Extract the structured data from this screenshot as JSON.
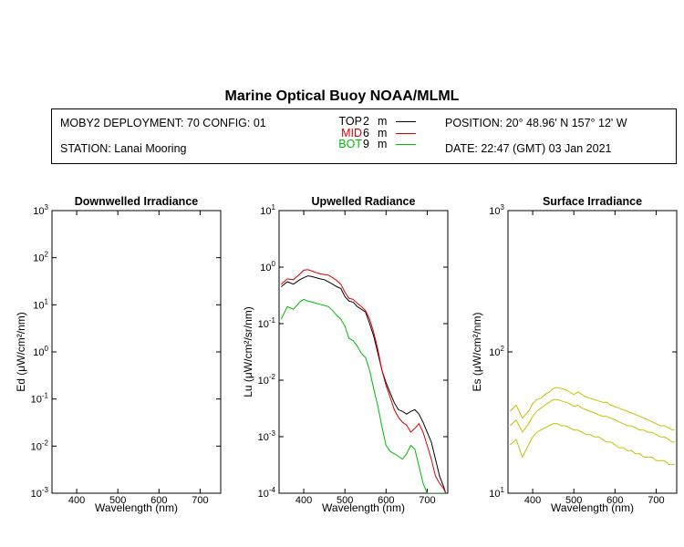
{
  "title": "Marine Optical Buoy NOAA/MLML",
  "info": {
    "deployment": "MOBY2 DEPLOYMENT: 70 CONFIG: 01",
    "station": "STATION: Lanai Mooring",
    "position": "POSITION: 20° 48.96' N   157° 12' W",
    "date": "DATE: 22:47 (GMT) 03 Jan 2021",
    "legend": [
      {
        "label": "TOP",
        "depth": "2",
        "unit": "m",
        "color": "#000000"
      },
      {
        "label": "MID",
        "depth": "6",
        "unit": "m",
        "color": "#dd0000"
      },
      {
        "label": "BOT",
        "depth": "9",
        "unit": "m",
        "color": "#00bb00"
      }
    ]
  },
  "chart_data": [
    {
      "type": "line",
      "title": "Downwelled Irradiance",
      "xlabel": "Wavelength (nm)",
      "ylabel": "Ed  (μW/cm²/nm)",
      "xlim": [
        340,
        750
      ],
      "ylim": [
        0.001,
        1000
      ],
      "yscale": "log",
      "xticks": [
        400,
        500,
        600,
        700
      ],
      "yticks": [
        0.001,
        0.01,
        0.1,
        1,
        10,
        100,
        1000
      ],
      "ytick_labels": [
        [
          "10",
          "-3"
        ],
        [
          "10",
          "-2"
        ],
        [
          "10",
          "-1"
        ],
        [
          "10",
          "0"
        ],
        [
          "10",
          "1"
        ],
        [
          "10",
          "2"
        ],
        [
          "10",
          "3"
        ]
      ],
      "series": []
    },
    {
      "type": "line",
      "title": "Upwelled Radiance",
      "xlabel": "Wavelength (nm)",
      "ylabel": "Lu  (μW/cm²/sr/nm)",
      "xlim": [
        340,
        750
      ],
      "ylim": [
        0.0001,
        10
      ],
      "yscale": "log",
      "xticks": [
        400,
        500,
        600,
        700
      ],
      "yticks": [
        0.0001,
        0.001,
        0.01,
        0.1,
        1,
        10
      ],
      "ytick_labels": [
        [
          "10",
          "-4"
        ],
        [
          "10",
          "-3"
        ],
        [
          "10",
          "-2"
        ],
        [
          "10",
          "-1"
        ],
        [
          "10",
          "0"
        ],
        [
          "10",
          "1"
        ]
      ],
      "x": [
        345,
        360,
        375,
        390,
        400,
        410,
        420,
        430,
        440,
        450,
        460,
        470,
        480,
        490,
        500,
        510,
        520,
        530,
        540,
        550,
        560,
        570,
        580,
        590,
        600,
        610,
        620,
        630,
        640,
        650,
        660,
        670,
        680,
        690,
        700,
        710,
        720,
        730,
        740,
        745
      ],
      "series": [
        {
          "name": "TOP",
          "color": "#000000",
          "values": [
            0.45,
            0.55,
            0.5,
            0.6,
            0.65,
            0.7,
            0.68,
            0.65,
            0.62,
            0.6,
            0.55,
            0.5,
            0.45,
            0.42,
            0.3,
            0.25,
            0.24,
            0.2,
            0.18,
            0.16,
            0.1,
            0.06,
            0.03,
            0.015,
            0.009,
            0.006,
            0.004,
            0.003,
            0.0028,
            0.0025,
            0.0028,
            0.003,
            0.0025,
            0.0018,
            0.0012,
            0.0008,
            0.0004,
            0.0002,
            0.00013,
            0.0001
          ]
        },
        {
          "name": "MID",
          "color": "#dd0000",
          "values": [
            0.5,
            0.62,
            0.6,
            0.75,
            0.88,
            0.9,
            0.85,
            0.8,
            0.76,
            0.74,
            0.72,
            0.65,
            0.58,
            0.5,
            0.36,
            0.28,
            0.27,
            0.23,
            0.2,
            0.17,
            0.12,
            0.07,
            0.035,
            0.015,
            0.008,
            0.005,
            0.003,
            0.0022,
            0.0018,
            0.0016,
            0.0012,
            0.0014,
            0.0017,
            0.0012,
            0.0007,
            0.0004,
            0.0002,
            0.00015,
            0.00012,
            0.0001
          ]
        },
        {
          "name": "BOT",
          "color": "#00bb00",
          "values": [
            0.12,
            0.2,
            0.18,
            0.24,
            0.27,
            0.25,
            0.24,
            0.23,
            0.22,
            0.21,
            0.2,
            0.17,
            0.14,
            0.12,
            0.09,
            0.055,
            0.05,
            0.04,
            0.03,
            0.025,
            0.015,
            0.007,
            0.0035,
            0.0015,
            0.0007,
            0.00055,
            0.0005,
            0.00045,
            0.0004,
            0.0005,
            0.0007,
            0.0006,
            0.0003,
            0.00015,
            0.0001,
            0.0001,
            0.0001,
            0.0001,
            0.0001,
            0.0001
          ]
        }
      ]
    },
    {
      "type": "line",
      "title": "Surface Irradiance",
      "xlabel": "Wavelength (nm)",
      "ylabel": "Es  (μW/cm²/nm)",
      "xlim": [
        340,
        750
      ],
      "ylim": [
        10,
        1000
      ],
      "yscale": "log",
      "xticks": [
        400,
        500,
        600,
        700
      ],
      "yticks": [
        10,
        100,
        1000
      ],
      "ytick_labels": [
        [
          "10",
          "1"
        ],
        [
          "10",
          "2"
        ],
        [
          "10",
          "3"
        ]
      ],
      "x": [
        345,
        360,
        375,
        390,
        400,
        410,
        420,
        430,
        440,
        450,
        460,
        470,
        480,
        490,
        500,
        510,
        520,
        530,
        540,
        550,
        560,
        570,
        580,
        590,
        600,
        610,
        620,
        630,
        640,
        650,
        660,
        670,
        680,
        690,
        700,
        710,
        720,
        730,
        740,
        745
      ],
      "series": [
        {
          "name": "Es 1",
          "color": "#c8c000",
          "values": [
            38,
            42,
            34,
            38,
            43,
            46,
            47,
            50,
            52,
            55,
            56,
            55,
            54,
            52,
            50,
            52,
            50,
            48,
            47,
            46,
            45,
            44,
            44,
            42,
            41,
            40,
            39,
            38,
            37,
            36,
            35,
            34,
            33,
            32,
            31,
            30,
            30,
            29,
            28,
            28
          ]
        },
        {
          "name": "Es 2",
          "color": "#c8c000",
          "values": [
            30,
            33,
            27,
            31,
            35,
            38,
            40,
            42,
            44,
            46,
            46,
            45,
            44,
            43,
            41,
            42,
            40,
            39,
            38,
            37,
            36,
            35,
            35,
            34,
            33,
            32,
            31,
            30,
            30,
            29,
            28,
            28,
            27,
            27,
            26,
            25,
            25,
            24,
            23,
            23
          ]
        },
        {
          "name": "Es 3",
          "color": "#c8c000",
          "values": [
            22,
            24,
            18,
            22,
            25,
            27,
            28,
            29,
            30,
            31,
            31,
            30,
            30,
            29,
            28,
            28,
            27,
            26,
            26,
            25,
            25,
            24,
            23,
            23,
            22,
            21,
            21,
            20,
            20,
            19,
            19,
            18,
            18,
            18,
            17,
            17,
            17,
            16,
            16,
            16
          ]
        }
      ]
    }
  ]
}
